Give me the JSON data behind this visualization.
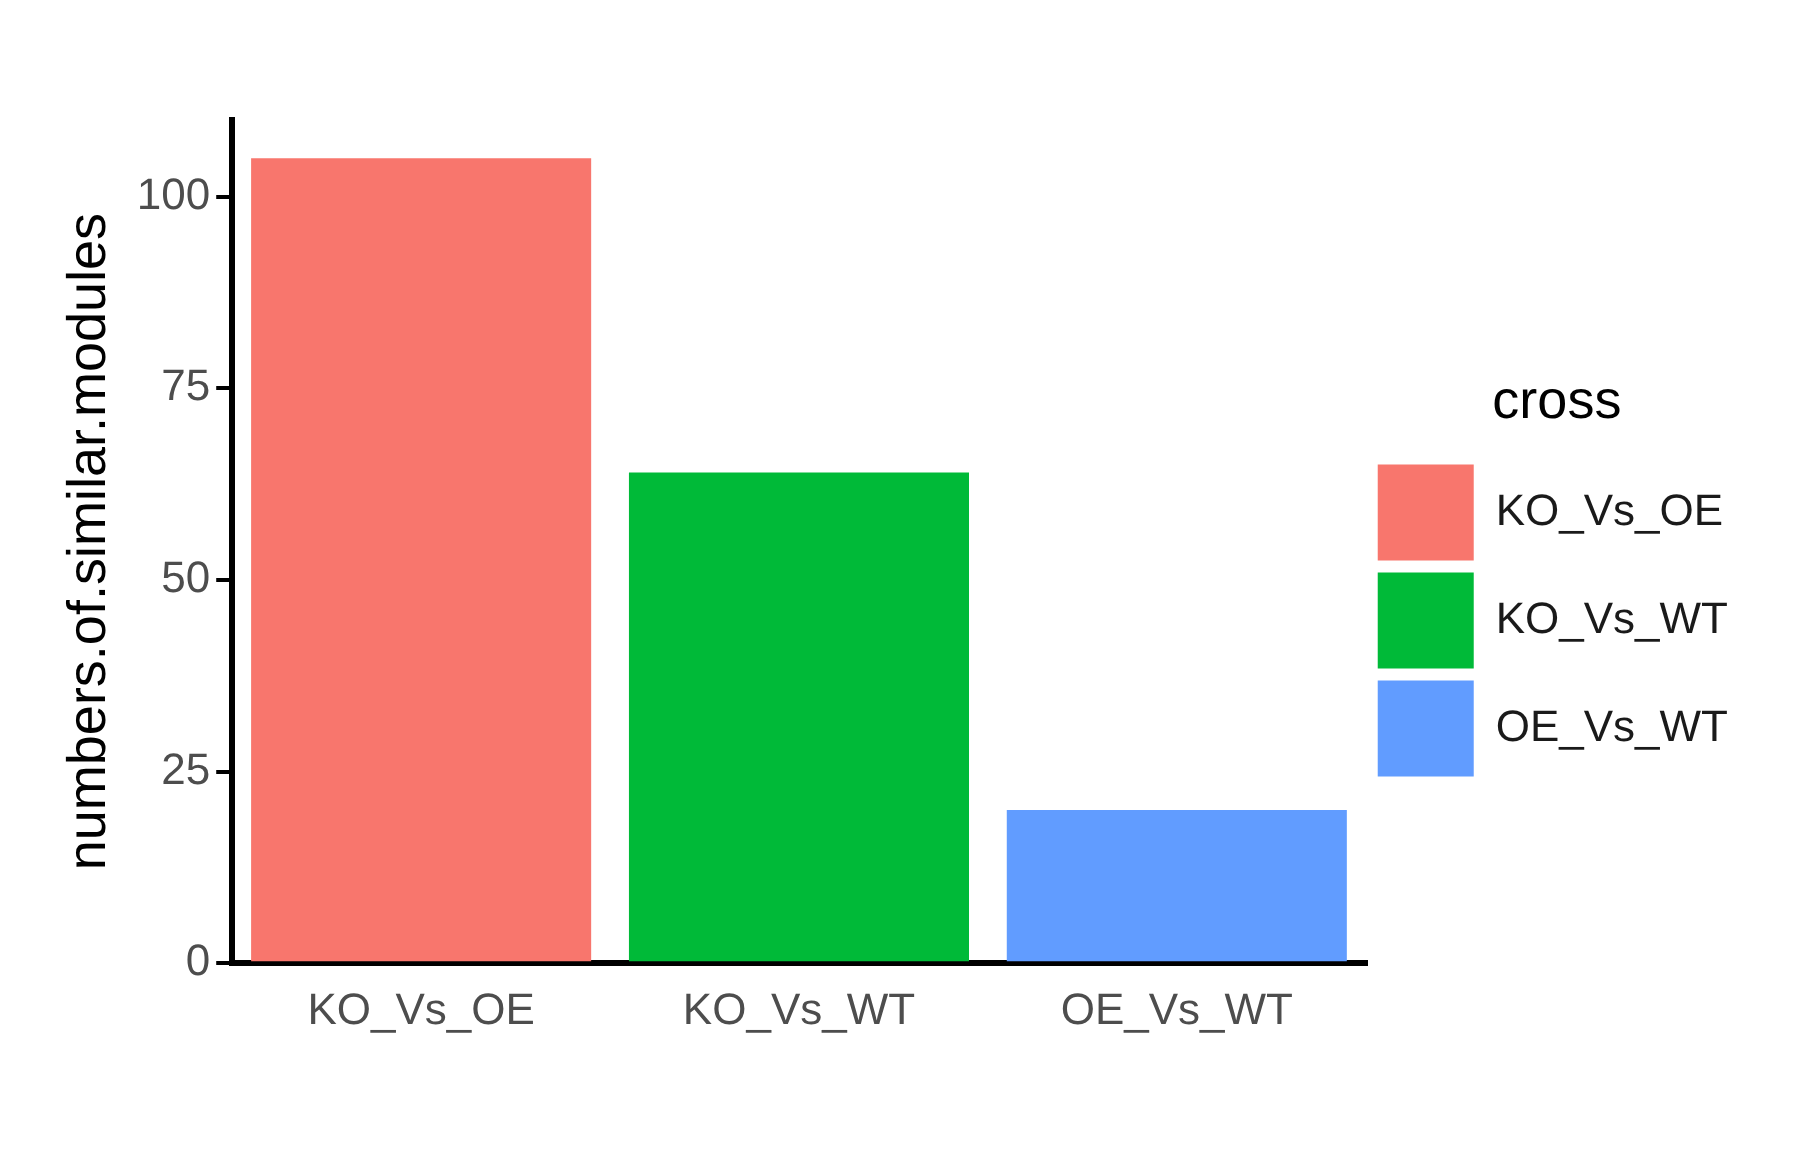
{
  "chart_data": {
    "type": "bar",
    "ylabel": "numbers.of.similar.modules",
    "legend_title": "cross",
    "categories": [
      "KO_Vs_OE",
      "KO_Vs_WT",
      "OE_Vs_WT"
    ],
    "series": [
      {
        "name": "KO_Vs_OE",
        "color": "#f8766d",
        "values": [
          105,
          null,
          null
        ]
      },
      {
        "name": "KO_Vs_WT",
        "color": "#00ba38",
        "values": [
          null,
          64,
          null
        ]
      },
      {
        "name": "OE_Vs_WT",
        "color": "#619cff",
        "values": [
          null,
          null,
          20
        ]
      }
    ],
    "ylim": [
      0,
      110
    ],
    "yticks": [
      0,
      25,
      50,
      75,
      100
    ],
    "grid": false,
    "legend": "right"
  }
}
